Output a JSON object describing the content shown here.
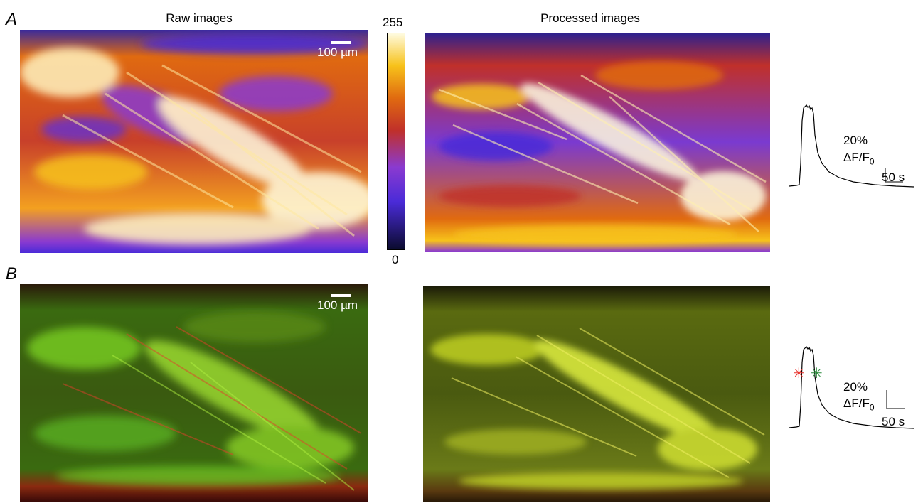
{
  "panels": {
    "a_label": "A",
    "b_label": "B"
  },
  "titles": {
    "raw": "Raw images",
    "processed": "Processed images"
  },
  "scale": {
    "a_label": "100 µm",
    "b_label": "100 µm"
  },
  "colorbar": {
    "max_label": "255",
    "min_label": "0",
    "colors": [
      "#0b0b2e",
      "#4a2bd8",
      "#8a3ad0",
      "#c0302a",
      "#e06a10",
      "#f7c21a",
      "#fffbe0"
    ]
  },
  "traces": {
    "a": {
      "amp_label": "20%",
      "unit_main": "ΔF/F",
      "unit_sub": "0",
      "time_label": "50 s"
    },
    "b": {
      "amp_label": "20%",
      "unit_main": "ΔF/F",
      "unit_sub": "0",
      "time_label": "50 s",
      "marker_colors": [
        "#e8302a",
        "#2a8a3a"
      ]
    }
  }
}
